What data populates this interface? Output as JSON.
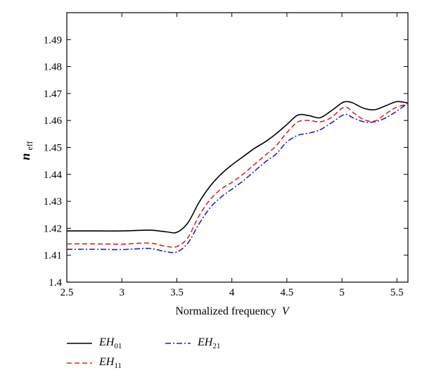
{
  "chart_data": {
    "type": "line",
    "xlabel": "Normalized frequency",
    "xlabel_var": "V",
    "ylabel_main": "n",
    "ylabel_sub": "eff",
    "xlim": [
      2.5,
      5.6
    ],
    "ylim": [
      1.4,
      1.5
    ],
    "xticks": [
      "2.5",
      "3",
      "3.5",
      "4",
      "4.5",
      "5",
      "5.5"
    ],
    "xtick_values": [
      2.5,
      3,
      3.5,
      4,
      4.5,
      5,
      5.5
    ],
    "yticks": [
      "1.4",
      "1.41",
      "1.42",
      "1.43",
      "1.44",
      "1.45",
      "1.46",
      "1.47",
      "1.48",
      "1.49"
    ],
    "ytick_values": [
      1.4,
      1.41,
      1.42,
      1.43,
      1.44,
      1.45,
      1.46,
      1.47,
      1.48,
      1.49
    ],
    "grid": false,
    "legend_placement": "bottom-left, below plot",
    "series": [
      {
        "name_main": "EH",
        "name_sub": "01",
        "color": "#000000",
        "dash": "solid",
        "points": [
          [
            2.5,
            1.419
          ],
          [
            2.8,
            1.419
          ],
          [
            3.0,
            1.419
          ],
          [
            3.25,
            1.4193
          ],
          [
            3.4,
            1.4187
          ],
          [
            3.5,
            1.4185
          ],
          [
            3.6,
            1.422
          ],
          [
            3.7,
            1.4295
          ],
          [
            3.8,
            1.4355
          ],
          [
            3.9,
            1.44
          ],
          [
            4.0,
            1.4435
          ],
          [
            4.1,
            1.4465
          ],
          [
            4.2,
            1.4495
          ],
          [
            4.3,
            1.452
          ],
          [
            4.4,
            1.455
          ],
          [
            4.5,
            1.4585
          ],
          [
            4.6,
            1.462
          ],
          [
            4.7,
            1.4618
          ],
          [
            4.8,
            1.461
          ],
          [
            4.9,
            1.4635
          ],
          [
            5.0,
            1.4665
          ],
          [
            5.05,
            1.467
          ],
          [
            5.1,
            1.4665
          ],
          [
            5.2,
            1.4645
          ],
          [
            5.3,
            1.464
          ],
          [
            5.4,
            1.4655
          ],
          [
            5.5,
            1.467
          ],
          [
            5.6,
            1.4665
          ]
        ]
      },
      {
        "name_main": "EH",
        "name_sub": "11",
        "color": "#e0241b",
        "dash": "dashed",
        "points": [
          [
            2.5,
            1.4142
          ],
          [
            2.8,
            1.4142
          ],
          [
            3.0,
            1.4141
          ],
          [
            3.25,
            1.4145
          ],
          [
            3.4,
            1.4133
          ],
          [
            3.5,
            1.4132
          ],
          [
            3.6,
            1.4165
          ],
          [
            3.7,
            1.4245
          ],
          [
            3.8,
            1.4305
          ],
          [
            3.9,
            1.4345
          ],
          [
            4.0,
            1.437
          ],
          [
            4.1,
            1.44
          ],
          [
            4.2,
            1.4435
          ],
          [
            4.3,
            1.447
          ],
          [
            4.4,
            1.4505
          ],
          [
            4.5,
            1.4555
          ],
          [
            4.6,
            1.4595
          ],
          [
            4.7,
            1.46
          ],
          [
            4.8,
            1.4595
          ],
          [
            4.9,
            1.461
          ],
          [
            5.0,
            1.4645
          ],
          [
            5.05,
            1.4648
          ],
          [
            5.1,
            1.463
          ],
          [
            5.2,
            1.4603
          ],
          [
            5.3,
            1.4598
          ],
          [
            5.4,
            1.4625
          ],
          [
            5.5,
            1.465
          ],
          [
            5.6,
            1.466
          ]
        ]
      },
      {
        "name_main": "EH",
        "name_sub": "21",
        "color": "#1f1fc8",
        "dash": "dashdot",
        "points": [
          [
            2.5,
            1.4122
          ],
          [
            2.8,
            1.4122
          ],
          [
            3.0,
            1.4121
          ],
          [
            3.25,
            1.4125
          ],
          [
            3.4,
            1.4113
          ],
          [
            3.5,
            1.4112
          ],
          [
            3.6,
            1.4145
          ],
          [
            3.7,
            1.4215
          ],
          [
            3.8,
            1.4275
          ],
          [
            3.9,
            1.4315
          ],
          [
            4.0,
            1.4345
          ],
          [
            4.1,
            1.4375
          ],
          [
            4.2,
            1.441
          ],
          [
            4.3,
            1.4445
          ],
          [
            4.4,
            1.4475
          ],
          [
            4.5,
            1.452
          ],
          [
            4.6,
            1.4545
          ],
          [
            4.7,
            1.4553
          ],
          [
            4.8,
            1.4565
          ],
          [
            4.9,
            1.459
          ],
          [
            5.0,
            1.4618
          ],
          [
            5.05,
            1.4622
          ],
          [
            5.1,
            1.461
          ],
          [
            5.2,
            1.4595
          ],
          [
            5.3,
            1.4595
          ],
          [
            5.4,
            1.461
          ],
          [
            5.5,
            1.4635
          ],
          [
            5.6,
            1.4665
          ]
        ]
      }
    ]
  }
}
